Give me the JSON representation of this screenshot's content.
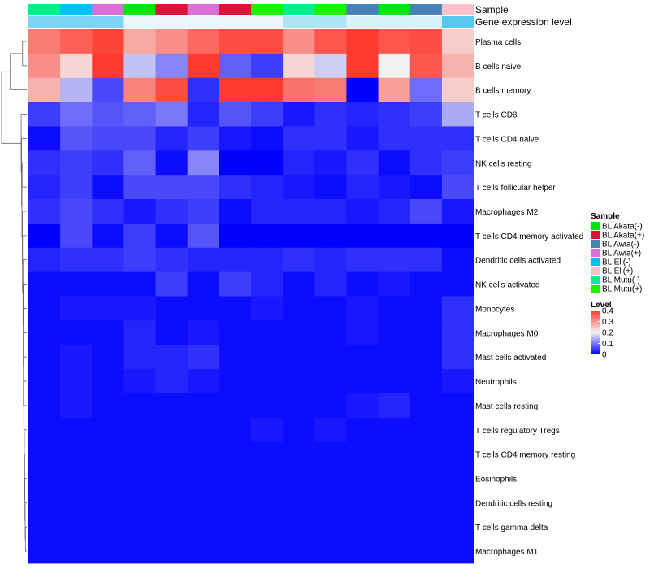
{
  "chart_data": {
    "type": "heatmap",
    "annotation_labels": {
      "sample": "Sample",
      "expression": "Gene expression level"
    },
    "column_samples": [
      "BL Mutu(-)",
      "BL Eli(-)",
      "BL Awia(+)",
      "BL Akata(-)",
      "BL Akata(+)",
      "BL Awia(+)",
      "BL Akata(+)",
      "BL Mutu(+)",
      "BL Mutu(-)",
      "BL Mutu(+)",
      "BL Awia(-)",
      "BL Akata(-)",
      "BL Awia(-)",
      "BL Eli(+)"
    ],
    "rows": [
      "Plasma cells",
      "B cells naive",
      "B cells memory",
      "T cells CD8",
      "T cells CD4 naive",
      "NK cells resting",
      "T cells follicular helper",
      "Macrophages M2",
      "T cells CD4 memory activated",
      "Dendritic cells activated",
      "NK cells activated",
      "Monocytes",
      "Macrophages M0",
      "Mast cells activated",
      "Neutrophils",
      "Mast cells resting",
      "T cells regulatory  Tregs",
      "T cells CD4 memory resting",
      "Eosinophils",
      "Dendritic cells resting",
      "T cells gamma delta",
      "Macrophages M1"
    ],
    "values": [
      [
        0.33,
        0.36,
        0.39,
        0.28,
        0.31,
        0.35,
        0.38,
        0.38,
        0.31,
        0.37,
        0.4,
        0.37,
        0.38,
        0.24
      ],
      [
        0.31,
        0.23,
        0.4,
        0.16,
        0.11,
        0.4,
        0.08,
        0.05,
        0.23,
        0.17,
        0.4,
        0.2,
        0.37,
        0.27
      ],
      [
        0.27,
        0.15,
        0.06,
        0.32,
        0.38,
        0.04,
        0.4,
        0.4,
        0.34,
        0.33,
        0.0,
        0.29,
        0.09,
        0.24
      ],
      [
        0.05,
        0.09,
        0.07,
        0.08,
        0.1,
        0.03,
        0.07,
        0.05,
        0.02,
        0.04,
        0.03,
        0.04,
        0.05,
        0.14
      ],
      [
        0.01,
        0.07,
        0.06,
        0.06,
        0.03,
        0.05,
        0.02,
        0.01,
        0.04,
        0.04,
        0.02,
        0.04,
        0.04,
        0.04
      ],
      [
        0.04,
        0.05,
        0.04,
        0.08,
        0.01,
        0.11,
        0.0,
        0.0,
        0.03,
        0.02,
        0.04,
        0.01,
        0.04,
        0.05
      ],
      [
        0.03,
        0.05,
        0.01,
        0.06,
        0.06,
        0.06,
        0.04,
        0.03,
        0.02,
        0.01,
        0.03,
        0.02,
        0.01,
        0.06
      ],
      [
        0.04,
        0.06,
        0.04,
        0.02,
        0.04,
        0.05,
        0.01,
        0.03,
        0.03,
        0.03,
        0.02,
        0.03,
        0.06,
        0.02
      ],
      [
        0.0,
        0.06,
        0.01,
        0.05,
        0.01,
        0.07,
        0.0,
        0.0,
        0.0,
        0.0,
        0.0,
        0.0,
        0.0,
        0.0
      ],
      [
        0.03,
        0.04,
        0.04,
        0.05,
        0.04,
        0.03,
        0.03,
        0.03,
        0.04,
        0.03,
        0.04,
        0.04,
        0.04,
        0.01
      ],
      [
        0.01,
        0.01,
        0.01,
        0.01,
        0.05,
        0.01,
        0.05,
        0.03,
        0.01,
        0.03,
        0.01,
        0.02,
        0.01,
        0.01
      ],
      [
        0.01,
        0.02,
        0.02,
        0.02,
        0.01,
        0.01,
        0.01,
        0.02,
        0.01,
        0.01,
        0.02,
        0.01,
        0.01,
        0.04
      ],
      [
        0.01,
        0.01,
        0.01,
        0.03,
        0.01,
        0.02,
        0.01,
        0.01,
        0.01,
        0.01,
        0.02,
        0.01,
        0.01,
        0.04
      ],
      [
        0.01,
        0.02,
        0.01,
        0.03,
        0.03,
        0.04,
        0.01,
        0.01,
        0.01,
        0.01,
        0.01,
        0.01,
        0.01,
        0.04
      ],
      [
        0.01,
        0.02,
        0.01,
        0.02,
        0.03,
        0.02,
        0.01,
        0.01,
        0.01,
        0.01,
        0.01,
        0.01,
        0.01,
        0.02
      ],
      [
        0.01,
        0.02,
        0.01,
        0.01,
        0.01,
        0.01,
        0.01,
        0.01,
        0.01,
        0.01,
        0.02,
        0.03,
        0.01,
        0.01
      ],
      [
        0.01,
        0.01,
        0.01,
        0.01,
        0.01,
        0.01,
        0.01,
        0.02,
        0.01,
        0.02,
        0.01,
        0.01,
        0.01,
        0.01
      ],
      [
        0.01,
        0.01,
        0.01,
        0.01,
        0.01,
        0.01,
        0.01,
        0.01,
        0.01,
        0.01,
        0.01,
        0.01,
        0.01,
        0.01
      ],
      [
        0.01,
        0.01,
        0.01,
        0.01,
        0.01,
        0.01,
        0.01,
        0.01,
        0.01,
        0.01,
        0.01,
        0.01,
        0.01,
        0.01
      ],
      [
        0.01,
        0.01,
        0.01,
        0.01,
        0.01,
        0.01,
        0.01,
        0.01,
        0.01,
        0.01,
        0.01,
        0.01,
        0.01,
        0.01
      ],
      [
        0.01,
        0.01,
        0.01,
        0.01,
        0.01,
        0.01,
        0.01,
        0.01,
        0.01,
        0.01,
        0.01,
        0.01,
        0.01,
        0.01
      ],
      [
        0.01,
        0.01,
        0.01,
        0.01,
        0.01,
        0.01,
        0.01,
        0.01,
        0.01,
        0.01,
        0.01,
        0.01,
        0.01,
        0.01
      ]
    ],
    "expression_bar": [
      0.05,
      0.05,
      0.05,
      0.2,
      0.2,
      0.2,
      0.2,
      0.2,
      0.12,
      0.12,
      0.18,
      0.18,
      0.18,
      0.0
    ],
    "color_scale": {
      "min": 0,
      "mid": 0.2,
      "max": 0.4,
      "low_color": "#0000FF",
      "mid_color": "#F2F2F2",
      "high_color": "#FF3B2F"
    },
    "expression_bar_colors": {
      "low": "#57C8F2",
      "high": "#EAF6FA"
    },
    "legend": {
      "sample_title": "Sample",
      "sample_items": [
        {
          "label": "BL Akata(-)",
          "color": "#00E60A"
        },
        {
          "label": "BL Akata(+)",
          "color": "#DB143C"
        },
        {
          "label": "BL Awia(-)",
          "color": "#4682B4"
        },
        {
          "label": "BL Awia(+)",
          "color": "#DA70D6"
        },
        {
          "label": "BL Eli(-)",
          "color": "#00BFFF"
        },
        {
          "label": "BL Eli(+)",
          "color": "#FFC0CB"
        },
        {
          "label": "BL Mutu(-)",
          "color": "#00F08C"
        },
        {
          "label": "BL Mutu(+)",
          "color": "#1AF200"
        }
      ],
      "level_title": "Level",
      "level_ticks": [
        "0.4",
        "0.3",
        "0.2",
        "0.1",
        "0"
      ],
      "level_values": [
        0.4,
        0.3,
        0.2,
        0.1,
        0
      ]
    },
    "dendrogram": {
      "merges": [
        {
          "a": [
            "row",
            0
          ],
          "b": [
            "row",
            1
          ],
          "h": 0.02
        },
        {
          "a": [
            "node",
            0
          ],
          "b": [
            "row",
            2
          ],
          "h": 0.3
        },
        {
          "a": [
            "row",
            20
          ],
          "b": [
            "row",
            21
          ],
          "h": 0.002
        },
        {
          "a": [
            "row",
            19
          ],
          "b": [
            "node",
            2
          ],
          "h": 0.003
        },
        {
          "a": [
            "row",
            18
          ],
          "b": [
            "node",
            3
          ],
          "h": 0.004
        },
        {
          "a": [
            "row",
            17
          ],
          "b": [
            "node",
            4
          ],
          "h": 0.005
        },
        {
          "a": [
            "row",
            16
          ],
          "b": [
            "node",
            5
          ],
          "h": 0.007
        },
        {
          "a": [
            "row",
            15
          ],
          "b": [
            "node",
            6
          ],
          "h": 0.008
        },
        {
          "a": [
            "row",
            14
          ],
          "b": [
            "node",
            7
          ],
          "h": 0.01
        },
        {
          "a": [
            "row",
            12
          ],
          "b": [
            "row",
            13
          ],
          "h": 0.01
        },
        {
          "a": [
            "row",
            11
          ],
          "b": [
            "node",
            9
          ],
          "h": 0.012
        },
        {
          "a": [
            "node",
            10
          ],
          "b": [
            "node",
            8
          ],
          "h": 0.013
        },
        {
          "a": [
            "row",
            10
          ],
          "b": [
            "node",
            11
          ],
          "h": 0.014
        },
        {
          "a": [
            "row",
            9
          ],
          "b": [
            "node",
            12
          ],
          "h": 0.016
        },
        {
          "a": [
            "row",
            8
          ],
          "b": [
            "node",
            13
          ],
          "h": 0.02
        },
        {
          "a": [
            "row",
            7
          ],
          "b": [
            "node",
            14
          ],
          "h": 0.022
        },
        {
          "a": [
            "row",
            5
          ],
          "b": [
            "row",
            6
          ],
          "h": 0.024
        },
        {
          "a": [
            "node",
            16
          ],
          "b": [
            "node",
            15
          ],
          "h": 0.026
        },
        {
          "a": [
            "row",
            4
          ],
          "b": [
            "node",
            17
          ],
          "h": 0.03
        },
        {
          "a": [
            "row",
            3
          ],
          "b": [
            "node",
            18
          ],
          "h": 0.035
        },
        {
          "a": [
            "node",
            1
          ],
          "b": [
            "node",
            19
          ],
          "h": 0.7
        }
      ]
    }
  }
}
